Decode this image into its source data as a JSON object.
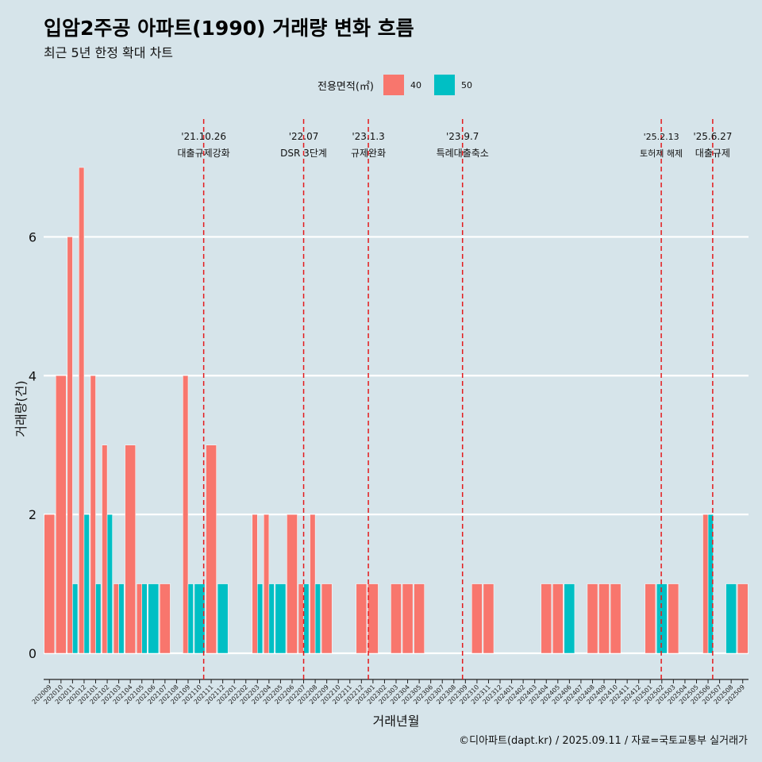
{
  "header": {
    "title": "입암2주공 아파트(1990) 거래량 변화 흐름",
    "subtitle": "최근 5년 한정 확대 차트"
  },
  "legend": {
    "title": "전용면적(㎡)",
    "items": [
      {
        "label": "40",
        "color": "#f8766d"
      },
      {
        "label": "50",
        "color": "#00bfc4"
      }
    ]
  },
  "footer": "©디아파트(dapt.kr) / 2025.09.11 / 자료=국토교통부 실거래가",
  "chart_data": {
    "type": "bar",
    "xlabel": "거래년월",
    "ylabel": "거래량(건)",
    "ylim": [
      0,
      7
    ],
    "yticks": [
      0,
      2,
      4,
      6
    ],
    "grid": true,
    "legend_position": "top",
    "categories": [
      "202009",
      "202010",
      "202011",
      "202012",
      "202101",
      "202102",
      "202103",
      "202104",
      "202105",
      "202106",
      "202107",
      "202108",
      "202109",
      "202110",
      "202111",
      "202112",
      "202201",
      "202202",
      "202203",
      "202204",
      "202205",
      "202206",
      "202207",
      "202208",
      "202209",
      "202210",
      "202211",
      "202212",
      "202301",
      "202302",
      "202303",
      "202304",
      "202305",
      "202306",
      "202307",
      "202308",
      "202309",
      "202310",
      "202311",
      "202312",
      "202401",
      "202402",
      "202403",
      "202404",
      "202405",
      "202406",
      "202407",
      "202408",
      "202409",
      "202410",
      "202411",
      "202412",
      "202501",
      "202502",
      "202503",
      "202504",
      "202505",
      "202506",
      "202507",
      "202508",
      "202509"
    ],
    "series": [
      {
        "name": "40",
        "color": "#f8766d",
        "values": [
          2,
          4,
          6,
          7,
          4,
          3,
          1,
          3,
          1,
          0,
          1,
          0,
          4,
          0,
          3,
          0,
          0,
          0,
          2,
          2,
          0,
          2,
          1,
          2,
          1,
          0,
          0,
          1,
          1,
          0,
          1,
          1,
          1,
          0,
          0,
          0,
          0,
          1,
          1,
          0,
          0,
          0,
          0,
          1,
          1,
          0,
          0,
          1,
          1,
          1,
          0,
          0,
          1,
          0,
          1,
          0,
          0,
          2,
          0,
          0,
          1
        ]
      },
      {
        "name": "50",
        "color": "#00bfc4",
        "values": [
          0,
          0,
          1,
          2,
          1,
          2,
          1,
          0,
          1,
          1,
          0,
          0,
          1,
          1,
          0,
          1,
          0,
          0,
          1,
          1,
          1,
          0,
          1,
          1,
          0,
          0,
          0,
          0,
          0,
          0,
          0,
          0,
          0,
          0,
          0,
          0,
          0,
          0,
          0,
          0,
          0,
          0,
          0,
          0,
          0,
          1,
          0,
          0,
          0,
          0,
          0,
          0,
          0,
          1,
          0,
          0,
          0,
          2,
          0,
          1,
          0
        ]
      }
    ],
    "annotations": [
      {
        "date": "'21.10.26",
        "label": "대출규제강화",
        "category": "202110",
        "offset": 0.85
      },
      {
        "date": "'22.07",
        "label": "DSR 3단계",
        "category": "202207",
        "offset": 0.5
      },
      {
        "date": "'23.1.3",
        "label": "규제완화",
        "category": "202301",
        "offset": 0.1
      },
      {
        "date": "'23.9.7",
        "label": "특례대출축소",
        "category": "202309",
        "offset": 0.25
      },
      {
        "date": "'25.2.13",
        "label": "토허제 해제",
        "category": "202502",
        "offset": 0.45
      },
      {
        "date": "'25.6.27",
        "label": "대출규제",
        "category": "202506",
        "offset": 0.9
      }
    ]
  }
}
